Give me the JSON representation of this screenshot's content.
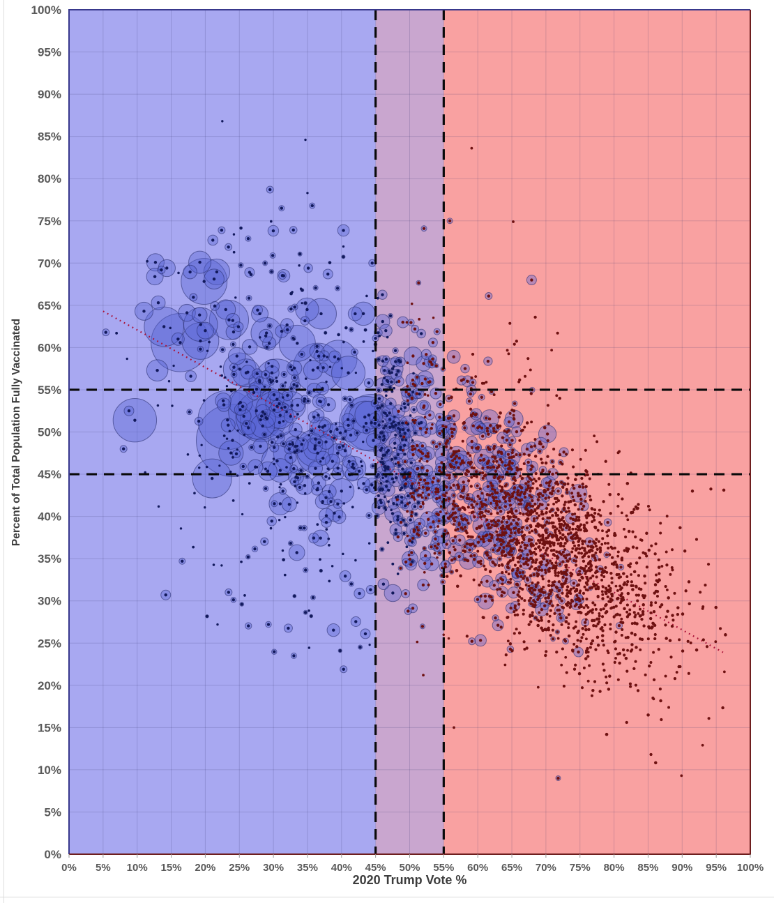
{
  "chart_data": {
    "type": "bubble-scatter",
    "title": "",
    "xlabel": "2020 Trump Vote %",
    "ylabel": "Percent of Total Population Fully Vaccinated",
    "xlim": [
      0,
      100
    ],
    "ylim": [
      0,
      100
    ],
    "tick_step": 5,
    "x_tick_labels": [
      "0%",
      "5%",
      "10%",
      "15%",
      "20%",
      "25%",
      "30%",
      "35%",
      "40%",
      "45%",
      "50%",
      "55%",
      "60%",
      "65%",
      "70%",
      "75%",
      "80%",
      "85%",
      "90%",
      "95%",
      "100%"
    ],
    "y_tick_labels": [
      "0%",
      "5%",
      "10%",
      "15%",
      "20%",
      "25%",
      "30%",
      "35%",
      "40%",
      "45%",
      "50%",
      "55%",
      "60%",
      "65%",
      "70%",
      "75%",
      "80%",
      "85%",
      "90%",
      "95%",
      "100%"
    ],
    "grid": true,
    "legend": "none",
    "regions": [
      {
        "name": "biden-majority-band",
        "x0": 0,
        "x1": 45,
        "fill": "#a8a8f1"
      },
      {
        "name": "swing-overlap-band",
        "x0": 45,
        "x1": 55,
        "fill": "#c9a6cf"
      },
      {
        "name": "trump-majority-band",
        "x0": 55,
        "x1": 100,
        "fill": "#f9a1a1"
      }
    ],
    "reference_lines": {
      "vertical_x": [
        45,
        55
      ],
      "horizontal_y": [
        45,
        55
      ],
      "color": "#0a0a0a",
      "dash": [
        15,
        10
      ],
      "width": 3.2
    },
    "trendline": {
      "x1": 5,
      "y1": 64.3,
      "x2": 96,
      "y2": 23.9,
      "color": "#a91238",
      "style": "dotted"
    },
    "style": {
      "bubble_fill": "rgba(88,100,212,0.40)",
      "bubble_stroke": "rgba(40,44,110,0.58)",
      "dot_blue": "#12195c",
      "dot_red": "#6e1111",
      "grid_color": "rgba(55,55,110,0.20)",
      "frame_left_top": "#38388c",
      "frame_right_bottom": "#6e1e1e",
      "tick_mark_color": "#9a9a9a"
    },
    "seed": 20210927,
    "clusters": [
      {
        "name": "blue-large-metros",
        "count": 78,
        "cx": 31,
        "sx": 8,
        "cy": 54,
        "sy": 6,
        "slope": -0.5,
        "rmin": 10,
        "rmax": 46,
        "rpow": 2.4,
        "color": "blue",
        "bubble": true,
        "xclip": [
          8,
          46
        ],
        "yclip": [
          33,
          71
        ]
      },
      {
        "name": "blue-medium",
        "count": 165,
        "cx": 35,
        "sx": 8.5,
        "cy": 51,
        "sy": 7.5,
        "slope": -0.55,
        "rmin": 3.5,
        "rmax": 11,
        "rpow": 1.7,
        "color": "blue",
        "bubble": true,
        "xclip": [
          5,
          46.5
        ],
        "yclip": [
          25,
          74
        ]
      },
      {
        "name": "blue-small-dots",
        "count": 135,
        "cx": 33,
        "sx": 11,
        "cy": 48,
        "sy": 11,
        "slope": -0.45,
        "rmin": 1.6,
        "rmax": 1.9,
        "rpow": 1,
        "color": "blue",
        "bubble": false,
        "xclip": [
          4,
          46.5
        ],
        "yclip": [
          21,
          87
        ]
      },
      {
        "name": "blue-low-sparse",
        "count": 22,
        "cx": 34,
        "sx": 8,
        "cy": 30,
        "sy": 4.5,
        "slope": -0.2,
        "rmin": 2,
        "rmax": 6,
        "rpow": 1.6,
        "color": "blue",
        "bubble": true,
        "xclip": [
          12,
          46
        ],
        "yclip": [
          20,
          37
        ]
      },
      {
        "name": "blue-top-sparse",
        "count": 18,
        "cx": 35,
        "sx": 6,
        "cy": 66,
        "sy": 4,
        "slope": -0.3,
        "rmin": 1.8,
        "rmax": 4.5,
        "rpow": 1.5,
        "color": "blue",
        "bubble": true,
        "xclip": [
          20,
          46
        ],
        "yclip": [
          60,
          75
        ]
      },
      {
        "name": "mid-blue-bubbles",
        "count": 135,
        "cx": 47.5,
        "sx": 2.3,
        "cy": 49,
        "sy": 7,
        "slope": -0.8,
        "rmin": 3,
        "rmax": 12.5,
        "rpow": 1.8,
        "color": "blue",
        "bubble": true,
        "xclip": [
          44.6,
          52.5
        ],
        "yclip": [
          22,
          70
        ]
      },
      {
        "name": "mid-red-bubbles",
        "count": 165,
        "cx": 52,
        "sx": 2.7,
        "cy": 46,
        "sy": 7,
        "slope": -0.8,
        "rmin": 3,
        "rmax": 11.5,
        "rpow": 1.8,
        "color": "red",
        "bubble": true,
        "xclip": [
          48,
          57.5
        ],
        "yclip": [
          20,
          68
        ]
      },
      {
        "name": "mid-blue-dots",
        "count": 55,
        "cx": 47.5,
        "sx": 2.4,
        "cy": 47,
        "sy": 9,
        "slope": -0.6,
        "rmin": 1.7,
        "rmax": 2.0,
        "rpow": 1,
        "color": "blue",
        "bubble": false,
        "xclip": [
          44.6,
          51
        ],
        "yclip": [
          18,
          72
        ]
      },
      {
        "name": "mid-red-dots",
        "count": 70,
        "cx": 52,
        "sx": 2.8,
        "cy": 45,
        "sy": 9,
        "slope": -0.6,
        "rmin": 1.7,
        "rmax": 2.0,
        "rpow": 1,
        "color": "red",
        "bubble": false,
        "xclip": [
          49,
          57.5
        ],
        "yclip": [
          16,
          70
        ]
      },
      {
        "name": "red-ringed-counties",
        "count": 300,
        "cx": 63,
        "sx": 6.5,
        "cy": 41,
        "sy": 6.5,
        "slope": -0.5,
        "rmin": 3,
        "rmax": 8.5,
        "rpow": 1.4,
        "color": "red",
        "bubble": true,
        "xclip": [
          55,
          90
        ],
        "yclip": [
          12,
          62
        ]
      },
      {
        "name": "red-medium-bubbles",
        "count": 55,
        "cx": 61,
        "sx": 5.5,
        "cy": 43,
        "sy": 6,
        "slope": -0.5,
        "rmin": 8,
        "rmax": 15,
        "rpow": 2.2,
        "color": "red",
        "bubble": true,
        "xclip": [
          55,
          82
        ],
        "yclip": [
          18,
          60
        ]
      },
      {
        "name": "red-dense-dots",
        "count": 1500,
        "cx": 72,
        "sx": 8.8,
        "cy": 35.5,
        "sy": 6.2,
        "slope": -0.45,
        "rmin": 1.9,
        "rmax": 2.3,
        "rpow": 1,
        "color": "red",
        "bubble": false,
        "xclip": [
          55.2,
          97.5
        ],
        "yclip": [
          8,
          63
        ]
      },
      {
        "name": "red-top-sparse",
        "count": 20,
        "cx": 67,
        "sx": 6.5,
        "cy": 57,
        "sy": 3.5,
        "slope": -0.3,
        "rmin": 1.9,
        "rmax": 2.2,
        "rpow": 1,
        "color": "red",
        "bubble": false,
        "xclip": [
          56,
          90
        ],
        "yclip": [
          50,
          65
        ]
      }
    ],
    "notable_points": [
      [
        22.5,
        86.8,
        1.7,
        "blue",
        0
      ],
      [
        34.7,
        84.6,
        1.7,
        "blue",
        0
      ],
      [
        29.5,
        78.7,
        5,
        "blue",
        1
      ],
      [
        35.7,
        76.8,
        4,
        "blue",
        1
      ],
      [
        35.0,
        78.3,
        1.7,
        "blue",
        0
      ],
      [
        31.2,
        76.5,
        4,
        "blue",
        1
      ],
      [
        59.1,
        83.6,
        1.9,
        "red",
        0
      ],
      [
        65.2,
        74.9,
        1.9,
        "red",
        0
      ],
      [
        55.9,
        75.0,
        4,
        "red",
        1
      ],
      [
        52.1,
        74.1,
        4,
        "red",
        1
      ],
      [
        22.4,
        73.9,
        5,
        "blue",
        1
      ],
      [
        24.2,
        73.4,
        1.7,
        "blue",
        0
      ],
      [
        29.9,
        70.9,
        4,
        "blue",
        1
      ],
      [
        19.2,
        70.1,
        16,
        "blue",
        1
      ],
      [
        44.5,
        70.0,
        5,
        "blue",
        1
      ],
      [
        12.6,
        68.4,
        12,
        "blue",
        1
      ],
      [
        26.5,
        68.9,
        7,
        "blue",
        1
      ],
      [
        67.9,
        68.0,
        7,
        "red",
        1
      ],
      [
        61.6,
        66.1,
        5,
        "red",
        1
      ],
      [
        5.4,
        61.8,
        5,
        "blue",
        1
      ],
      [
        11.0,
        64.3,
        13,
        "blue",
        1
      ],
      [
        8.8,
        52.5,
        7,
        "blue",
        1
      ],
      [
        8.0,
        48.0,
        5,
        "blue",
        1
      ],
      [
        14.2,
        30.7,
        7,
        "blue",
        1
      ],
      [
        96.2,
        21.6,
        1.9,
        "red",
        0
      ],
      [
        93.0,
        12.9,
        1.9,
        "red",
        0
      ],
      [
        89.9,
        9.3,
        1.9,
        "red",
        0
      ],
      [
        71.8,
        9.0,
        3.5,
        "red",
        1
      ],
      [
        56.5,
        15.0,
        1.9,
        "red",
        0
      ],
      [
        52.0,
        21.2,
        1.9,
        "red",
        0
      ],
      [
        40.3,
        21.9,
        5,
        "blue",
        1
      ],
      [
        43.5,
        26.1,
        7,
        "blue",
        1
      ],
      [
        21.8,
        27.2,
        1.7,
        "blue",
        0
      ],
      [
        33.0,
        23.5,
        4,
        "blue",
        1
      ],
      [
        24.0,
        49.0,
        52,
        "blue",
        1
      ],
      [
        27.5,
        52.5,
        40,
        "blue",
        1
      ],
      [
        30.5,
        56.0,
        32,
        "blue",
        1
      ],
      [
        21.0,
        44.5,
        28,
        "blue",
        1
      ],
      [
        47.5,
        57.5,
        15,
        "blue",
        1
      ],
      [
        50.5,
        59.0,
        13,
        "red",
        1
      ],
      [
        46.5,
        62.0,
        9,
        "blue",
        1
      ],
      [
        49.0,
        63.0,
        8,
        "red",
        1
      ],
      [
        37.0,
        64.0,
        22,
        "blue",
        1
      ],
      [
        33.5,
        60.5,
        26,
        "blue",
        1
      ],
      [
        41.0,
        57.0,
        24,
        "blue",
        1
      ],
      [
        44.0,
        52.0,
        20,
        "blue",
        1
      ],
      [
        36.5,
        47.5,
        30,
        "blue",
        1
      ],
      [
        40.0,
        43.0,
        18,
        "blue",
        1
      ],
      [
        31.0,
        41.5,
        16,
        "blue",
        1
      ],
      [
        26.0,
        57.0,
        20,
        "blue",
        1
      ],
      [
        65.0,
        47.0,
        12,
        "red",
        1
      ],
      [
        60.0,
        50.5,
        10,
        "red",
        1
      ],
      [
        70.5,
        44.0,
        9,
        "red",
        1
      ],
      [
        58.5,
        56.0,
        8,
        "red",
        1
      ],
      [
        13.1,
        65.3,
        10,
        "blue",
        1
      ],
      [
        16.0,
        61.0,
        9,
        "blue",
        1
      ],
      [
        20.0,
        62.0,
        12,
        "blue",
        1
      ],
      [
        23.0,
        64.5,
        14,
        "blue",
        1
      ],
      [
        28.0,
        64.0,
        12,
        "blue",
        1
      ],
      [
        31.5,
        68.5,
        9,
        "blue",
        1
      ],
      [
        26.3,
        72.9,
        4,
        "blue",
        1
      ],
      [
        23.4,
        71.9,
        5,
        "blue",
        1
      ],
      [
        38.0,
        68.7,
        7,
        "blue",
        1
      ],
      [
        42.0,
        64.0,
        10,
        "blue",
        1
      ]
    ]
  }
}
